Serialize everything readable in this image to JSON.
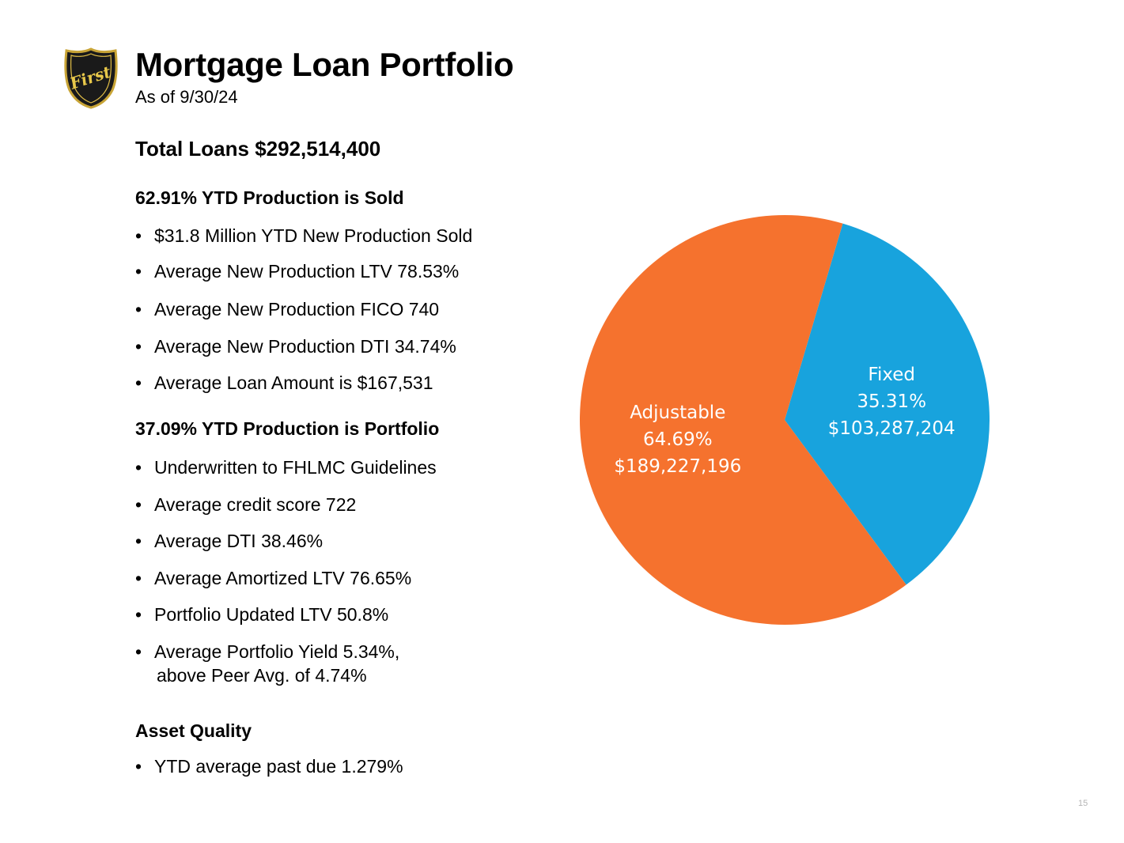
{
  "header": {
    "logo_text": "First",
    "title": "Mortgage Loan Portfolio",
    "subtitle": "As of 9/30/24"
  },
  "summary": {
    "total_loans": "Total Loans $292,514,400"
  },
  "sold": {
    "heading": "62.91% YTD Production is Sold",
    "items": [
      "$31.8 Million YTD New Production Sold",
      "Average New Production LTV 78.53%",
      "Average New Production FICO 740",
      "Average New Production DTI 34.74%",
      "Average Loan Amount is $167,531"
    ]
  },
  "portfolio": {
    "heading": "37.09% YTD Production is Portfolio",
    "items": [
      "Underwritten to FHLMC Guidelines",
      "Average credit score 722",
      "Average DTI 38.46%",
      "Average Amortized LTV 76.65%",
      "Portfolio Updated LTV 50.8%",
      "Average Portfolio Yield 5.34%,",
      "above Peer Avg. of 4.74%"
    ]
  },
  "asset_quality": {
    "heading": "Asset Quality",
    "items": [
      "YTD average past due 1.279%"
    ]
  },
  "bullet_char": "•",
  "page_number": "15",
  "chart_data": {
    "type": "pie",
    "title": "",
    "start_angle_deg": 0,
    "slices": [
      {
        "label": "Fixed",
        "percent_label": "35.31%",
        "value_label": "$103,287,204",
        "percent": 35.31,
        "value": 103287204,
        "color": "#18a3dd"
      },
      {
        "label": "Adjustable",
        "percent_label": "64.69%",
        "value_label": "$189,227,196",
        "percent": 64.69,
        "value": 189227196,
        "color": "#f5722e"
      }
    ]
  }
}
